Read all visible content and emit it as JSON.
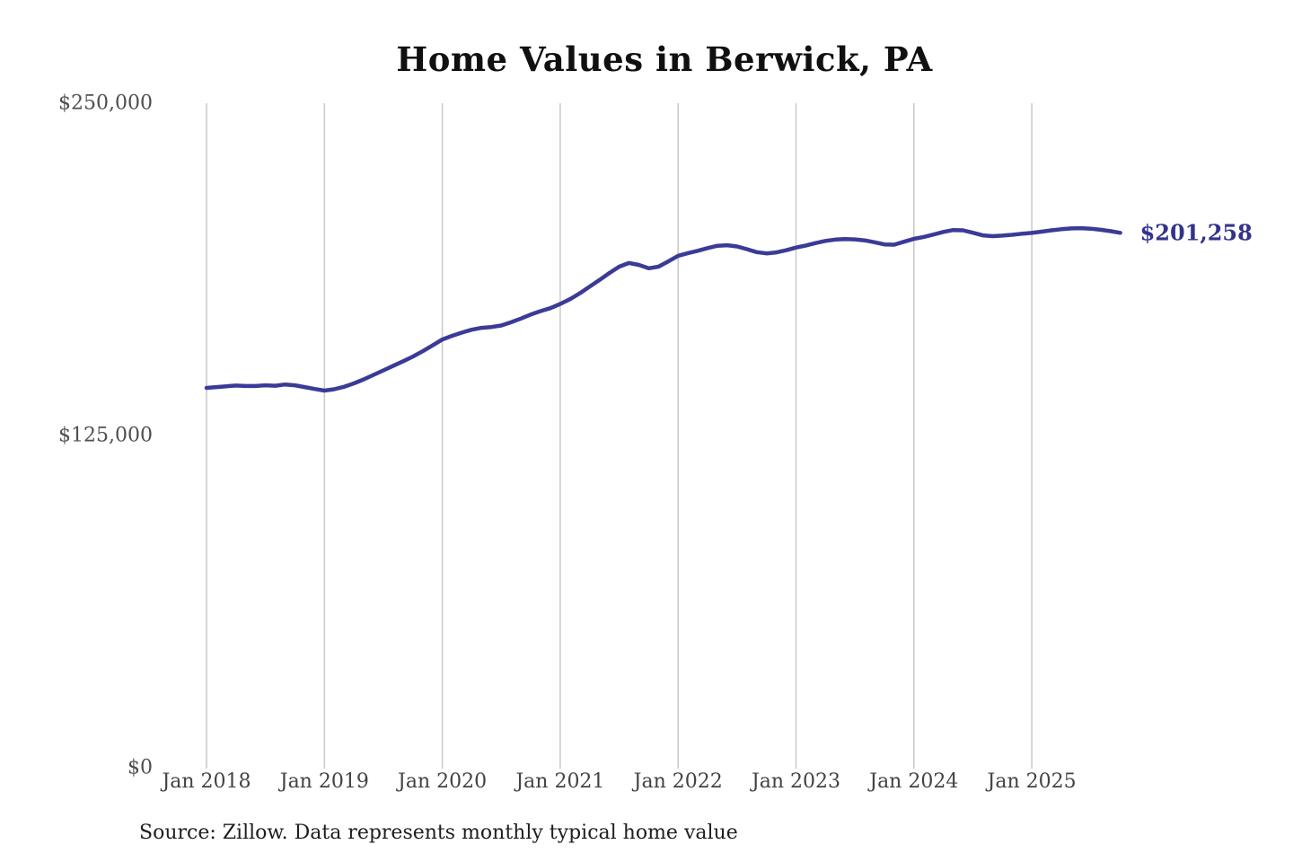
{
  "title": "Home Values in Berwick, PA",
  "source_note": "Source: Zillow. Data represents monthly typical home value",
  "end_label": "$201,258",
  "colors": {
    "line": "#3b3b97",
    "end_label": "#33338c",
    "gridline": "#cccccc",
    "title": "#101010",
    "axis_text": "#4a4a4a",
    "source_text": "#1e1e1e"
  },
  "chart_data": {
    "type": "line",
    "title": "Home Values in Berwick, PA",
    "xlabel": "",
    "ylabel": "",
    "frequency": "monthly",
    "x_start": "Jan 2018",
    "x_end": "Oct 2025",
    "x_tick_labels": [
      "Jan 2018",
      "Jan 2019",
      "Jan 2020",
      "Jan 2021",
      "Jan 2022",
      "Jan 2023",
      "Jan 2024",
      "Jan 2025"
    ],
    "y_ticks": [
      {
        "label": "$250,000",
        "value": 250000
      },
      {
        "label": "$125,000",
        "value": 125000
      },
      {
        "label": "$0",
        "value": 0
      }
    ],
    "ylim": [
      0,
      250000
    ],
    "grid": "vertical-only",
    "legend": "none",
    "final_value": 201258,
    "final_value_label": "$201,258",
    "series": [
      {
        "name": "Typical home value",
        "values": [
          142900,
          143200,
          143500,
          143800,
          143600,
          143600,
          143900,
          143700,
          144200,
          143900,
          143200,
          142500,
          141900,
          142400,
          143300,
          144600,
          146100,
          147800,
          149500,
          151200,
          152900,
          154700,
          156700,
          158900,
          161100,
          162500,
          163700,
          164800,
          165500,
          165800,
          166400,
          167600,
          169000,
          170500,
          171800,
          172900,
          174500,
          176300,
          178500,
          181000,
          183500,
          186100,
          188500,
          189900,
          189200,
          187900,
          188500,
          190500,
          192600,
          193600,
          194500,
          195500,
          196400,
          196600,
          196100,
          195100,
          194000,
          193500,
          193900,
          194700,
          195700,
          196500,
          197400,
          198200,
          198700,
          198900,
          198800,
          198400,
          197700,
          196900,
          196800,
          197900,
          199000,
          199700,
          200600,
          201600,
          202300,
          202200,
          201300,
          200300,
          200000,
          200200,
          200500,
          200900,
          201200,
          201700,
          202200,
          202600,
          202900,
          203000,
          202800,
          202400,
          201900,
          201258
        ]
      }
    ]
  }
}
